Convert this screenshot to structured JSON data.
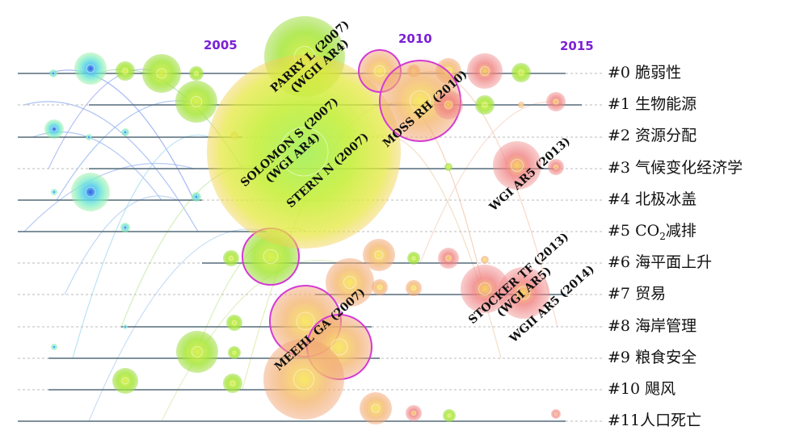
{
  "timeline": {
    "years": [
      "2005",
      "2010",
      "2015"
    ]
  },
  "clusters": [
    {
      "id": "#0",
      "label": "脆弱性"
    },
    {
      "id": "#1",
      "label": "生物能源"
    },
    {
      "id": "#2",
      "label": "资源分配"
    },
    {
      "id": "#3",
      "label": "气候变化经济学"
    },
    {
      "id": "#4",
      "label": "北极冰盖"
    },
    {
      "id": "#5",
      "label_pre": "CO",
      "label_sub": "2",
      "label_post": "减排"
    },
    {
      "id": "#6",
      "label": "海平面上升"
    },
    {
      "id": "#7",
      "label": "贸易"
    },
    {
      "id": "#8",
      "label": "海岸管理"
    },
    {
      "id": "#9",
      "label": "粮食安全"
    },
    {
      "id": "#10",
      "label": "飓风"
    },
    {
      "id": "#11",
      "label": "人口死亡"
    }
  ],
  "node_labels": [
    {
      "line1": "PARRY L (2007)",
      "line2": "(WGII AR4)"
    },
    {
      "line1": "SOLOMON S (2007)",
      "line2": "(WGI AR4)"
    },
    {
      "line1": "STERN N (2007)"
    },
    {
      "line1": "MOSS RH (2010)"
    },
    {
      "line1": "WGI AR5 (2013)"
    },
    {
      "line1": "STOCKER TF (2013)",
      "line2": "(WGI AR5)"
    },
    {
      "line1": "WGII AR5 (2014)"
    },
    {
      "line1": "MEEHL GA (2007)"
    }
  ],
  "colors": {
    "timeline_line": "#556b7a",
    "year_label": "#7b1fd6",
    "early": "#4ad3e0",
    "mid": "#8ee43a",
    "late_orange": "#f0a040",
    "recent_red": "#ef5555",
    "burst_ring": "#d43ad4"
  }
}
